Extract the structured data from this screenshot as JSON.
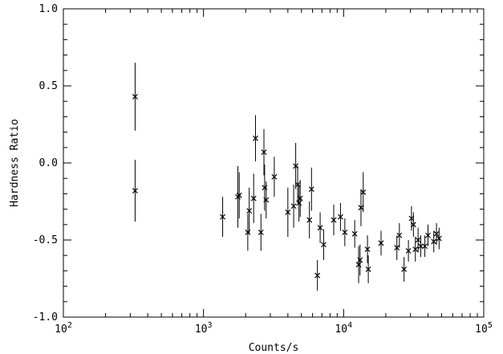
{
  "chart_data": {
    "type": "scatter",
    "title": "",
    "xlabel": "Counts/s",
    "ylabel": "Hardness Ratio",
    "x_scale": "log",
    "xlim": [
      100,
      100000
    ],
    "ylim": [
      -1.0,
      1.0
    ],
    "x_ticks": [
      {
        "value": 100,
        "base": "10",
        "exp": "2"
      },
      {
        "value": 1000,
        "base": "10",
        "exp": "3"
      },
      {
        "value": 10000,
        "base": "10",
        "exp": "4"
      },
      {
        "value": 100000,
        "base": "10",
        "exp": "5"
      }
    ],
    "y_ticks": [
      {
        "value": -1.0,
        "label": "-1.0"
      },
      {
        "value": -0.5,
        "label": "-0.5"
      },
      {
        "value": 0.0,
        "label": "0.0"
      },
      {
        "value": 0.5,
        "label": "0.5"
      },
      {
        "value": 1.0,
        "label": "1.0"
      }
    ],
    "grid": false,
    "marker": "x",
    "color": "#000000",
    "points": [
      {
        "x": 325,
        "y": 0.43,
        "err": 0.22
      },
      {
        "x": 325,
        "y": -0.18,
        "err": 0.2
      },
      {
        "x": 1370,
        "y": -0.35,
        "err": 0.13
      },
      {
        "x": 1760,
        "y": -0.22,
        "err": 0.2
      },
      {
        "x": 1800,
        "y": -0.21,
        "err": 0.15
      },
      {
        "x": 2070,
        "y": -0.45,
        "err": 0.12
      },
      {
        "x": 2120,
        "y": -0.31,
        "err": 0.15
      },
      {
        "x": 2280,
        "y": -0.23,
        "err": 0.16
      },
      {
        "x": 2350,
        "y": 0.16,
        "err": 0.15
      },
      {
        "x": 2570,
        "y": -0.45,
        "err": 0.12
      },
      {
        "x": 2700,
        "y": 0.07,
        "err": 0.15
      },
      {
        "x": 2730,
        "y": -0.16,
        "err": 0.15
      },
      {
        "x": 2800,
        "y": -0.24,
        "err": 0.12
      },
      {
        "x": 3200,
        "y": -0.09,
        "err": 0.13
      },
      {
        "x": 4000,
        "y": -0.32,
        "err": 0.16
      },
      {
        "x": 4400,
        "y": -0.28,
        "err": 0.14
      },
      {
        "x": 4550,
        "y": -0.02,
        "err": 0.15
      },
      {
        "x": 4700,
        "y": -0.14,
        "err": 0.12
      },
      {
        "x": 4800,
        "y": -0.26,
        "err": 0.12
      },
      {
        "x": 4900,
        "y": -0.23,
        "err": 0.12
      },
      {
        "x": 5700,
        "y": -0.37,
        "err": 0.12
      },
      {
        "x": 5900,
        "y": -0.17,
        "err": 0.14
      },
      {
        "x": 6500,
        "y": -0.73,
        "err": 0.1
      },
      {
        "x": 6800,
        "y": -0.42,
        "err": 0.1
      },
      {
        "x": 7200,
        "y": -0.53,
        "err": 0.1
      },
      {
        "x": 8500,
        "y": -0.37,
        "err": 0.1
      },
      {
        "x": 9500,
        "y": -0.35,
        "err": 0.09
      },
      {
        "x": 10200,
        "y": -0.45,
        "err": 0.09
      },
      {
        "x": 12000,
        "y": -0.46,
        "err": 0.09
      },
      {
        "x": 12800,
        "y": -0.66,
        "err": 0.12
      },
      {
        "x": 13100,
        "y": -0.63,
        "err": 0.1
      },
      {
        "x": 13300,
        "y": -0.29,
        "err": 0.12
      },
      {
        "x": 13800,
        "y": -0.19,
        "err": 0.13
      },
      {
        "x": 14800,
        "y": -0.56,
        "err": 0.09
      },
      {
        "x": 15000,
        "y": -0.69,
        "err": 0.09
      },
      {
        "x": 18500,
        "y": -0.52,
        "err": 0.08
      },
      {
        "x": 24000,
        "y": -0.55,
        "err": 0.08
      },
      {
        "x": 25000,
        "y": -0.47,
        "err": 0.08
      },
      {
        "x": 27000,
        "y": -0.69,
        "err": 0.08
      },
      {
        "x": 29000,
        "y": -0.57,
        "err": 0.07
      },
      {
        "x": 30500,
        "y": -0.36,
        "err": 0.08
      },
      {
        "x": 31500,
        "y": -0.4,
        "err": 0.08
      },
      {
        "x": 32500,
        "y": -0.56,
        "err": 0.08
      },
      {
        "x": 34000,
        "y": -0.5,
        "err": 0.08
      },
      {
        "x": 35500,
        "y": -0.54,
        "err": 0.07
      },
      {
        "x": 38000,
        "y": -0.54,
        "err": 0.07
      },
      {
        "x": 40000,
        "y": -0.47,
        "err": 0.07
      },
      {
        "x": 44000,
        "y": -0.51,
        "err": 0.07
      },
      {
        "x": 46000,
        "y": -0.46,
        "err": 0.07
      },
      {
        "x": 48000,
        "y": -0.49,
        "err": 0.07
      }
    ]
  }
}
